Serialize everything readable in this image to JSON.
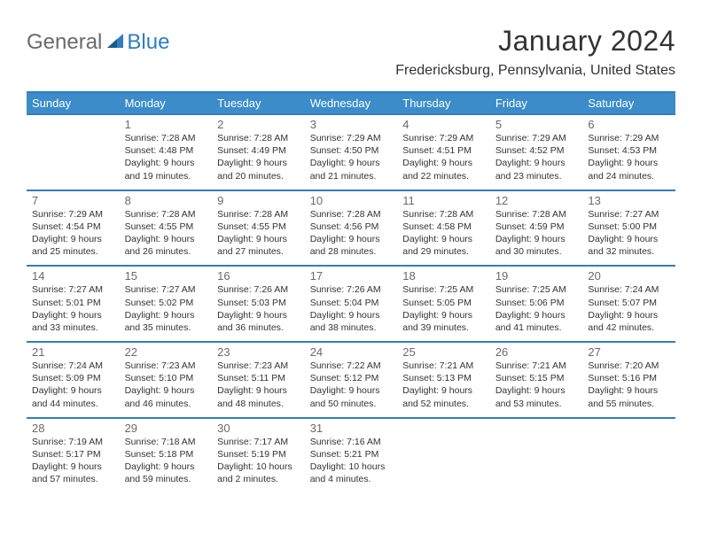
{
  "brand": {
    "part1": "General",
    "part2": "Blue"
  },
  "title": "January 2024",
  "location": "Fredericksburg, Pennsylvania, United States",
  "colors": {
    "header_bg": "#3b8cc9",
    "border": "#2f7ec0",
    "brand_gray": "#6a6a6a",
    "brand_blue": "#2f7ec0",
    "text": "#333333",
    "background": "#ffffff"
  },
  "weekdays": [
    "Sunday",
    "Monday",
    "Tuesday",
    "Wednesday",
    "Thursday",
    "Friday",
    "Saturday"
  ],
  "layout": {
    "rows": 5,
    "cols": 7,
    "first_day_col_index": 1,
    "days_in_month": 31
  },
  "weeks": [
    [
      null,
      {
        "n": "1",
        "sunrise": "7:28 AM",
        "sunset": "4:48 PM",
        "daylight": "9 hours and 19 minutes."
      },
      {
        "n": "2",
        "sunrise": "7:28 AM",
        "sunset": "4:49 PM",
        "daylight": "9 hours and 20 minutes."
      },
      {
        "n": "3",
        "sunrise": "7:29 AM",
        "sunset": "4:50 PM",
        "daylight": "9 hours and 21 minutes."
      },
      {
        "n": "4",
        "sunrise": "7:29 AM",
        "sunset": "4:51 PM",
        "daylight": "9 hours and 22 minutes."
      },
      {
        "n": "5",
        "sunrise": "7:29 AM",
        "sunset": "4:52 PM",
        "daylight": "9 hours and 23 minutes."
      },
      {
        "n": "6",
        "sunrise": "7:29 AM",
        "sunset": "4:53 PM",
        "daylight": "9 hours and 24 minutes."
      }
    ],
    [
      {
        "n": "7",
        "sunrise": "7:29 AM",
        "sunset": "4:54 PM",
        "daylight": "9 hours and 25 minutes."
      },
      {
        "n": "8",
        "sunrise": "7:28 AM",
        "sunset": "4:55 PM",
        "daylight": "9 hours and 26 minutes."
      },
      {
        "n": "9",
        "sunrise": "7:28 AM",
        "sunset": "4:55 PM",
        "daylight": "9 hours and 27 minutes."
      },
      {
        "n": "10",
        "sunrise": "7:28 AM",
        "sunset": "4:56 PM",
        "daylight": "9 hours and 28 minutes."
      },
      {
        "n": "11",
        "sunrise": "7:28 AM",
        "sunset": "4:58 PM",
        "daylight": "9 hours and 29 minutes."
      },
      {
        "n": "12",
        "sunrise": "7:28 AM",
        "sunset": "4:59 PM",
        "daylight": "9 hours and 30 minutes."
      },
      {
        "n": "13",
        "sunrise": "7:27 AM",
        "sunset": "5:00 PM",
        "daylight": "9 hours and 32 minutes."
      }
    ],
    [
      {
        "n": "14",
        "sunrise": "7:27 AM",
        "sunset": "5:01 PM",
        "daylight": "9 hours and 33 minutes."
      },
      {
        "n": "15",
        "sunrise": "7:27 AM",
        "sunset": "5:02 PM",
        "daylight": "9 hours and 35 minutes."
      },
      {
        "n": "16",
        "sunrise": "7:26 AM",
        "sunset": "5:03 PM",
        "daylight": "9 hours and 36 minutes."
      },
      {
        "n": "17",
        "sunrise": "7:26 AM",
        "sunset": "5:04 PM",
        "daylight": "9 hours and 38 minutes."
      },
      {
        "n": "18",
        "sunrise": "7:25 AM",
        "sunset": "5:05 PM",
        "daylight": "9 hours and 39 minutes."
      },
      {
        "n": "19",
        "sunrise": "7:25 AM",
        "sunset": "5:06 PM",
        "daylight": "9 hours and 41 minutes."
      },
      {
        "n": "20",
        "sunrise": "7:24 AM",
        "sunset": "5:07 PM",
        "daylight": "9 hours and 42 minutes."
      }
    ],
    [
      {
        "n": "21",
        "sunrise": "7:24 AM",
        "sunset": "5:09 PM",
        "daylight": "9 hours and 44 minutes."
      },
      {
        "n": "22",
        "sunrise": "7:23 AM",
        "sunset": "5:10 PM",
        "daylight": "9 hours and 46 minutes."
      },
      {
        "n": "23",
        "sunrise": "7:23 AM",
        "sunset": "5:11 PM",
        "daylight": "9 hours and 48 minutes."
      },
      {
        "n": "24",
        "sunrise": "7:22 AM",
        "sunset": "5:12 PM",
        "daylight": "9 hours and 50 minutes."
      },
      {
        "n": "25",
        "sunrise": "7:21 AM",
        "sunset": "5:13 PM",
        "daylight": "9 hours and 52 minutes."
      },
      {
        "n": "26",
        "sunrise": "7:21 AM",
        "sunset": "5:15 PM",
        "daylight": "9 hours and 53 minutes."
      },
      {
        "n": "27",
        "sunrise": "7:20 AM",
        "sunset": "5:16 PM",
        "daylight": "9 hours and 55 minutes."
      }
    ],
    [
      {
        "n": "28",
        "sunrise": "7:19 AM",
        "sunset": "5:17 PM",
        "daylight": "9 hours and 57 minutes."
      },
      {
        "n": "29",
        "sunrise": "7:18 AM",
        "sunset": "5:18 PM",
        "daylight": "9 hours and 59 minutes."
      },
      {
        "n": "30",
        "sunrise": "7:17 AM",
        "sunset": "5:19 PM",
        "daylight": "10 hours and 2 minutes."
      },
      {
        "n": "31",
        "sunrise": "7:16 AM",
        "sunset": "5:21 PM",
        "daylight": "10 hours and 4 minutes."
      },
      null,
      null,
      null
    ]
  ],
  "labels": {
    "sunrise_prefix": "Sunrise: ",
    "sunset_prefix": "Sunset: ",
    "daylight_prefix": "Daylight: "
  }
}
